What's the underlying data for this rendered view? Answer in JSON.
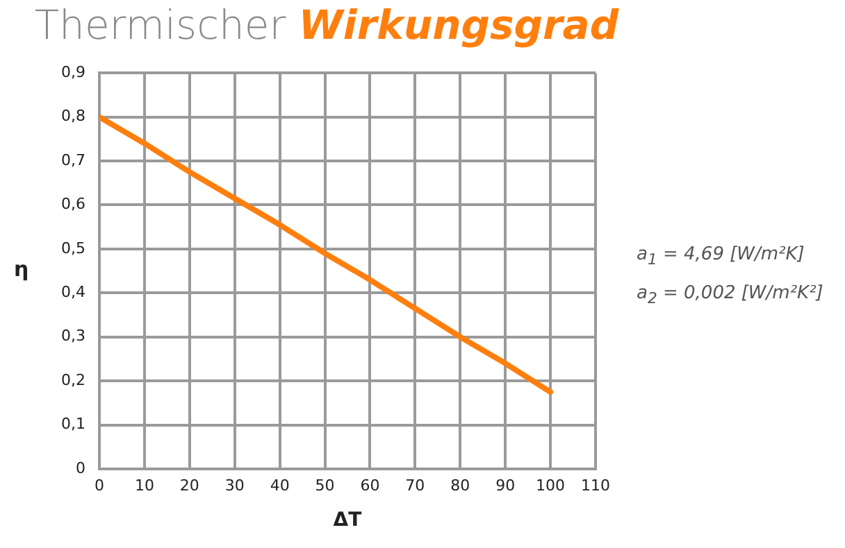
{
  "chart_data": {
    "type": "line",
    "title": "Thermischer Wirkungsgrad",
    "xlabel": "ΔT",
    "ylabel": "η",
    "x": [
      0,
      10,
      20,
      30,
      40,
      50,
      60,
      70,
      80,
      90,
      100
    ],
    "series": [
      {
        "color": "#ff7f0e",
        "values": [
          0.8,
          0.74,
          0.675,
          0.615,
          0.555,
          0.49,
          0.43,
          0.365,
          0.3,
          0.24,
          0.175
        ]
      }
    ],
    "xlim": [
      0,
      110
    ],
    "xticks": [
      0,
      10,
      20,
      30,
      40,
      50,
      60,
      70,
      80,
      90,
      100,
      110
    ],
    "ylim": [
      0,
      0.9
    ],
    "yticks": [
      0,
      {
        "value": 0.1,
        "label": "0,1"
      },
      {
        "value": 0.2,
        "label": "0,2"
      },
      {
        "value": 0.3,
        "label": "0,3"
      },
      {
        "value": 0.4,
        "label": "0,4"
      },
      {
        "value": 0.5,
        "label": "0,5"
      },
      {
        "value": 0.6,
        "label": "0,6"
      },
      {
        "value": 0.7,
        "label": "0,7"
      },
      {
        "value": 0.8,
        "label": "0,8"
      },
      {
        "value": 0.9,
        "label": "0,9"
      }
    ],
    "grid": true,
    "legend": false,
    "marker": "none",
    "line_style": "solid",
    "annotations": [
      "a$_{1}$ = 4,69 [W/m²K]",
      "a$_{2}$ = 0,002 [W/m²K²]"
    ]
  }
}
